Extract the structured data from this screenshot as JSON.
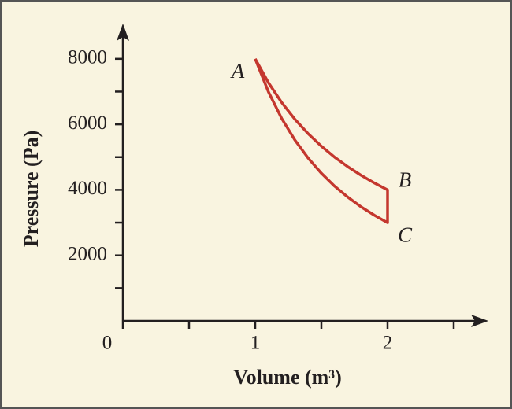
{
  "chart_data": {
    "type": "line",
    "xlabel": "Volume (m³)",
    "ylabel": "Pressure (Pa)",
    "x": [
      1,
      1.1,
      1.2,
      1.3,
      1.4,
      1.5,
      1.6,
      1.7,
      1.8,
      1.9,
      2,
      2,
      1.9,
      1.8,
      1.7,
      1.6,
      1.5,
      1.4,
      1.3,
      1.2,
      1.1,
      1
    ],
    "values": [
      8000,
      7273,
      6667,
      6154,
      5714,
      5333,
      5000,
      4706,
      4444,
      4211,
      4000,
      3000,
      3226,
      3482,
      3776,
      4114,
      4507,
      4970,
      5519,
      6181,
      6991,
      8000
    ],
    "color": "#c4372e",
    "annotations": [
      "A",
      "B",
      "C"
    ],
    "xlim": [
      0,
      2.75
    ],
    "ylim": [
      0,
      9100
    ],
    "xticks": [
      0,
      1,
      2
    ],
    "xminorticks": [
      0.5,
      1.5,
      2.5
    ],
    "yticks": [
      2000,
      4000,
      6000,
      8000
    ],
    "yminorticks": [
      1000,
      3000,
      5000,
      7000
    ]
  }
}
